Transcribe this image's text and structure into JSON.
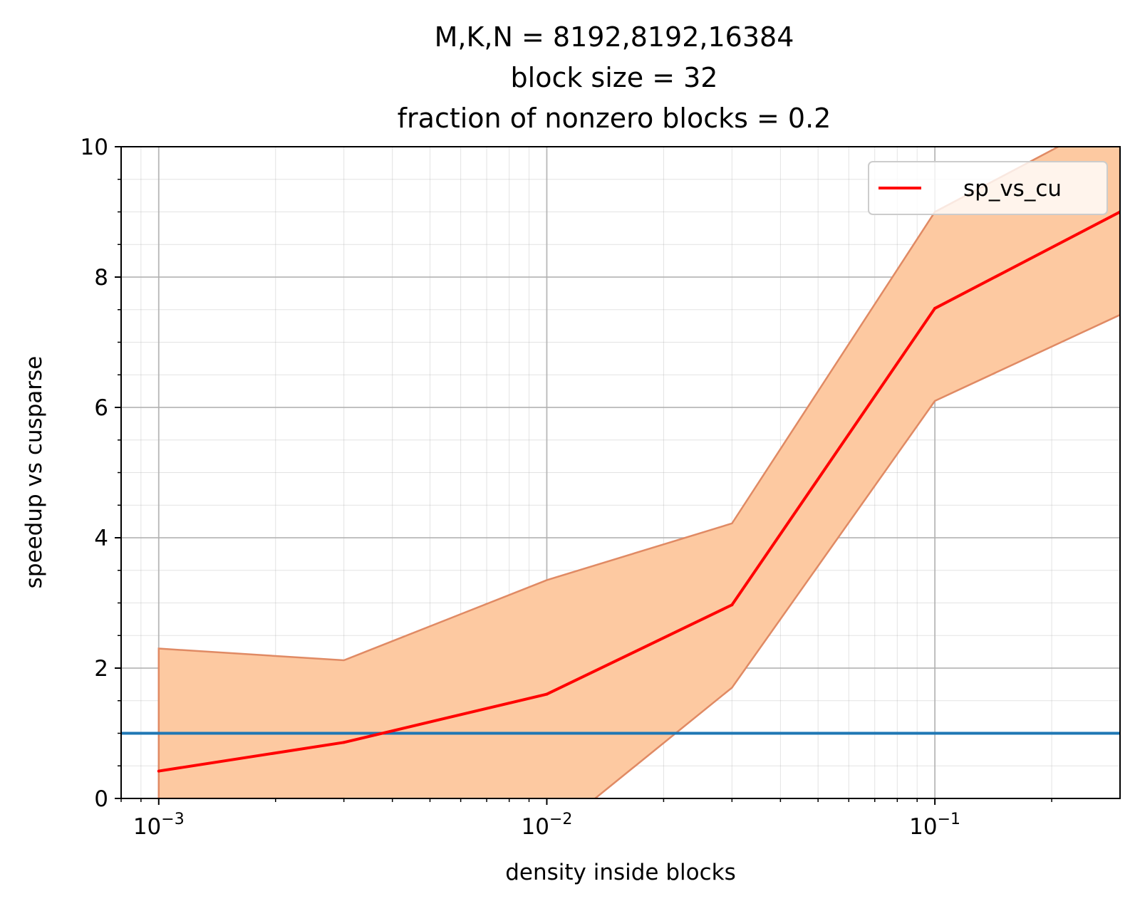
{
  "chart_data": {
    "type": "line",
    "title": [
      "M,K,N = 8192,8192,16384",
      "block size = 32",
      "fraction of nonzero blocks = 0.2"
    ],
    "xlabel": "density inside blocks",
    "ylabel": "speedup vs cusparse",
    "xscale": "log",
    "xlim": [
      0.0008,
      0.3
    ],
    "ylim": [
      0,
      10
    ],
    "xticks": [
      {
        "value": 0.001,
        "base": "10",
        "exp": "−3"
      },
      {
        "value": 0.01,
        "base": "10",
        "exp": "−2"
      },
      {
        "value": 0.1,
        "base": "10",
        "exp": "−1"
      }
    ],
    "yticks": [
      "0",
      "2",
      "4",
      "6",
      "8",
      "10"
    ],
    "grid": true,
    "legend_position": "upper right",
    "x": [
      0.001,
      0.003,
      0.01,
      0.03,
      0.1,
      0.3
    ],
    "series": [
      {
        "name": "sp_vs_cu",
        "values": [
          0.42,
          0.86,
          1.6,
          2.97,
          7.52,
          9.0
        ],
        "color": "#ff0000"
      }
    ],
    "band": {
      "lower": [
        0,
        0,
        -0.6,
        1.7,
        6.1,
        7.42
      ],
      "upper": [
        2.3,
        2.12,
        3.35,
        4.22,
        9.0,
        10.5
      ],
      "fill": "#fdc9a1",
      "edge": "#e08a64"
    },
    "reference_line": {
      "y": 1.0,
      "color": "#1f77b4"
    }
  }
}
